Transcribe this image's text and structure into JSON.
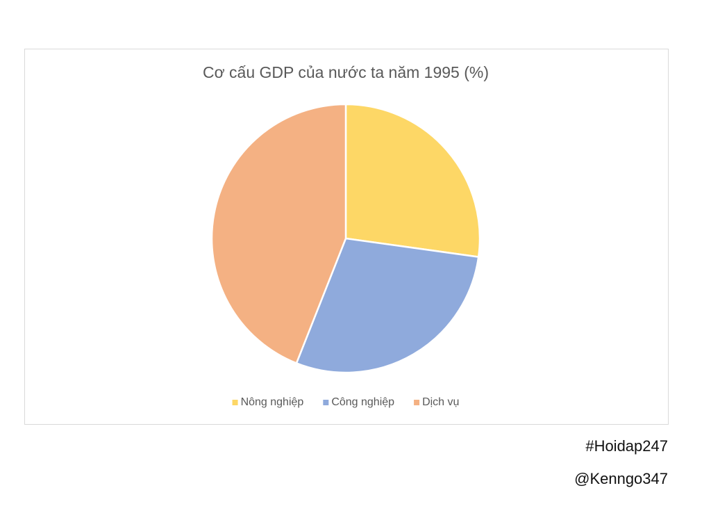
{
  "chart_data": {
    "type": "pie",
    "title": "Cơ cấu GDP của nước ta năm 1995 (%)",
    "categories": [
      "Nông nghiệp",
      "Công nghiệp",
      "Dịch vụ"
    ],
    "values": [
      27.2,
      28.8,
      44.0
    ],
    "colors": [
      "#fdd766",
      "#8faadc",
      "#f4b183"
    ],
    "legend": "bottom",
    "annotations": [
      "#Hoidap247",
      "@Kenngo347"
    ]
  }
}
